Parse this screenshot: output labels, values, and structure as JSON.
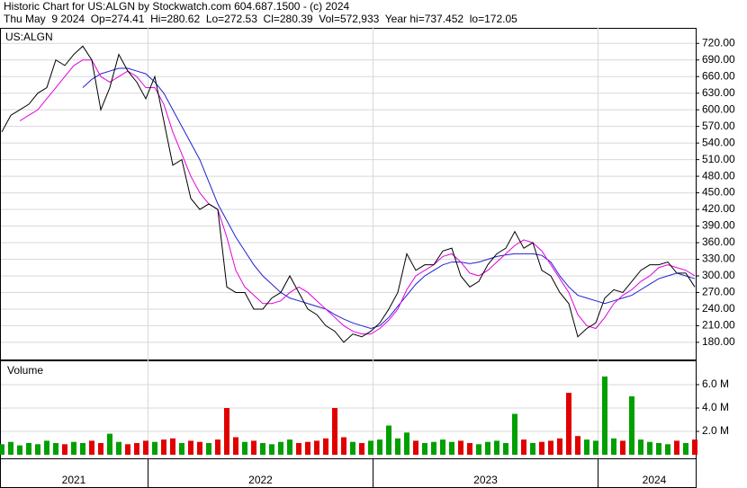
{
  "chart_data": {
    "type": "line",
    "title": "Historic Chart for US:ALGN by Stockwatch.com 604.687.1500 - (c) 2024",
    "subtitle": "Thu May  9 2024  Op=274.41  Hi=280.62  Lo=272.53  Cl=280.39  Vol=572,933  Year hi=737.452  lo=172.05",
    "x": [
      2021.35,
      2021.39,
      2021.43,
      2021.47,
      2021.51,
      2021.55,
      2021.59,
      2021.63,
      2021.67,
      2021.71,
      2021.75,
      2021.79,
      2021.83,
      2021.87,
      2021.91,
      2021.95,
      2021.99,
      2022.03,
      2022.07,
      2022.11,
      2022.15,
      2022.19,
      2022.23,
      2022.27,
      2022.31,
      2022.35,
      2022.39,
      2022.43,
      2022.47,
      2022.51,
      2022.55,
      2022.59,
      2022.63,
      2022.67,
      2022.71,
      2022.75,
      2022.79,
      2022.83,
      2022.87,
      2022.91,
      2022.95,
      2022.99,
      2023.03,
      2023.07,
      2023.11,
      2023.15,
      2023.19,
      2023.23,
      2023.27,
      2023.31,
      2023.35,
      2023.39,
      2023.43,
      2023.47,
      2023.51,
      2023.55,
      2023.59,
      2023.63,
      2023.67,
      2023.71,
      2023.75,
      2023.79,
      2023.83,
      2023.87,
      2023.91,
      2023.95,
      2023.99,
      2024.03,
      2024.07,
      2024.11,
      2024.15,
      2024.19,
      2024.23,
      2024.27,
      2024.31,
      2024.35,
      2024.39,
      2024.43
    ],
    "series": [
      {
        "name": "US:ALGN",
        "color": "#000000",
        "values": [
          560,
          590,
          600,
          610,
          630,
          640,
          690,
          680,
          700,
          715,
          690,
          600,
          640,
          700,
          670,
          650,
          620,
          660,
          580,
          500,
          510,
          440,
          420,
          430,
          420,
          280,
          270,
          270,
          240,
          240,
          260,
          270,
          300,
          270,
          240,
          230,
          210,
          200,
          180,
          195,
          190,
          200,
          215,
          240,
          270,
          340,
          310,
          320,
          320,
          345,
          350,
          300,
          280,
          290,
          320,
          340,
          350,
          380,
          350,
          360,
          310,
          300,
          270,
          250,
          190,
          205,
          215,
          260,
          275,
          270,
          290,
          310,
          320,
          320,
          325,
          305,
          305,
          280
        ]
      },
      {
        "color": "#e000e0",
        "values": [
          null,
          null,
          580,
          590,
          600,
          620,
          640,
          660,
          680,
          690,
          690,
          660,
          650,
          660,
          670,
          660,
          640,
          640,
          610,
          560,
          520,
          480,
          450,
          430,
          420,
          370,
          310,
          280,
          265,
          250,
          250,
          255,
          270,
          280,
          270,
          255,
          240,
          225,
          210,
          200,
          195,
          195,
          205,
          220,
          240,
          275,
          300,
          310,
          320,
          335,
          340,
          325,
          305,
          300,
          310,
          325,
          340,
          355,
          365,
          360,
          345,
          320,
          295,
          270,
          230,
          210,
          205,
          225,
          250,
          265,
          275,
          290,
          300,
          315,
          320,
          315,
          310,
          300
        ]
      },
      {
        "color": "#2020d0",
        "values": [
          null,
          null,
          null,
          null,
          null,
          null,
          null,
          null,
          null,
          640,
          655,
          665,
          670,
          675,
          675,
          670,
          665,
          650,
          630,
          600,
          570,
          540,
          510,
          470,
          430,
          400,
          370,
          345,
          320,
          300,
          285,
          270,
          260,
          255,
          250,
          245,
          240,
          230,
          222,
          215,
          210,
          205,
          210,
          225,
          245,
          265,
          285,
          300,
          310,
          320,
          325,
          325,
          322,
          325,
          330,
          335,
          338,
          340,
          340,
          340,
          337,
          325,
          300,
          280,
          265,
          260,
          255,
          250,
          255,
          260,
          265,
          275,
          285,
          295,
          300,
          305,
          300,
          295
        ]
      },
      {
        "name": "Volume",
        "type": "bar",
        "axis": "y2",
        "up_color": "#00a000",
        "down_color": "#e00000",
        "values": [
          900000,
          1100000,
          800000,
          1000000,
          900000,
          1200000,
          1000000,
          900000,
          1100000,
          1000000,
          1200000,
          1000000,
          1800000,
          1100000,
          900000,
          1000000,
          1200000,
          1100000,
          1300000,
          1400000,
          1000000,
          1200000,
          1100000,
          1000000,
          1300000,
          4000000,
          1500000,
          1100000,
          1200000,
          1000000,
          900000,
          1100000,
          1300000,
          1000000,
          1100000,
          1200000,
          1400000,
          4000000,
          1500000,
          1100000,
          1000000,
          1200000,
          1300000,
          2500000,
          1400000,
          1900000,
          1200000,
          1000000,
          1100000,
          1300000,
          1100000,
          1200000,
          1000000,
          900000,
          1100000,
          1200000,
          1000000,
          3500000,
          1300000,
          1000000,
          1100000,
          1200000,
          1400000,
          5300000,
          1600000,
          1300000,
          1200000,
          6700000,
          1400000,
          1200000,
          5000000,
          1300000,
          1100000,
          1000000,
          900000,
          1200000,
          1000000,
          1300000
        ]
      }
    ],
    "xlim": [
      2021.35,
      2024.43
    ],
    "year_lines": [
      2022,
      2023,
      2024
    ],
    "xticks": [
      {
        "value": 2021.67,
        "label": "2021"
      },
      {
        "value": 2022.5,
        "label": "2022"
      },
      {
        "value": 2023.5,
        "label": "2023"
      },
      {
        "value": 2024.25,
        "label": "2024"
      }
    ],
    "ylim": [
      149,
      748
    ],
    "yticks": [
      {
        "value": 180,
        "label": "180.00"
      },
      {
        "value": 210,
        "label": "210.00"
      },
      {
        "value": 240,
        "label": "240.00"
      },
      {
        "value": 270,
        "label": "270.00"
      },
      {
        "value": 300,
        "label": "300.00"
      },
      {
        "value": 330,
        "label": "330.00"
      },
      {
        "value": 360,
        "label": "360.00"
      },
      {
        "value": 390,
        "label": "390.00"
      },
      {
        "value": 420,
        "label": "420.00"
      },
      {
        "value": 450,
        "label": "450.00"
      },
      {
        "value": 480,
        "label": "480.00"
      },
      {
        "value": 510,
        "label": "510.00"
      },
      {
        "value": 540,
        "label": "540.00"
      },
      {
        "value": 570,
        "label": "570.00"
      },
      {
        "value": 600,
        "label": "600.00"
      },
      {
        "value": 630,
        "label": "630.00"
      },
      {
        "value": 660,
        "label": "660.00"
      },
      {
        "value": 690,
        "label": "690.00"
      },
      {
        "value": 720,
        "label": "720.00"
      }
    ],
    "y2lim": [
      0,
      8000000
    ],
    "y2ticks": [
      {
        "value": 2000000,
        "label": "2.0 M"
      },
      {
        "value": 4000000,
        "label": "4.0 M"
      },
      {
        "value": 6000000,
        "label": "6.0 M"
      }
    ],
    "grid": true
  }
}
